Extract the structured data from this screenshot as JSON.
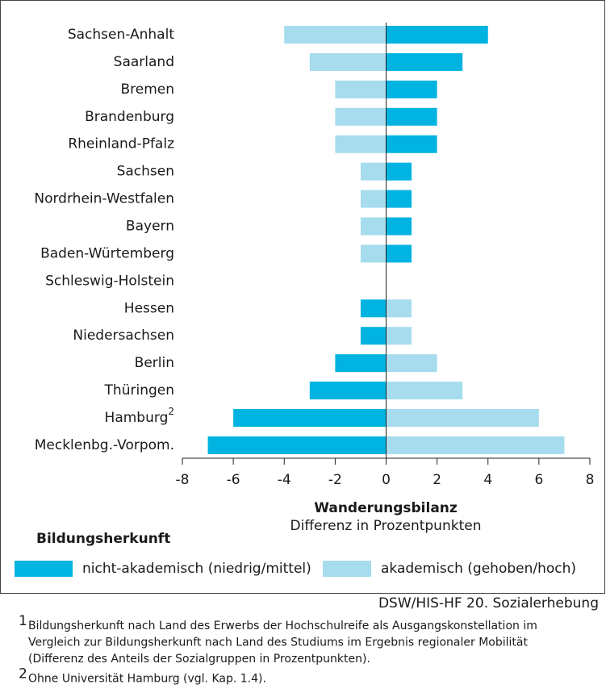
{
  "chart_data": {
    "type": "bar",
    "orientation": "horizontal",
    "categories": [
      "Sachsen-Anhalt",
      "Saarland",
      "Bremen",
      "Brandenburg",
      "Rheinland-Pfalz",
      "Sachsen",
      "Nordrhein-Westfalen",
      "Bayern",
      "Baden-Würtemberg",
      "Schleswig-Holstein",
      "Hessen",
      "Niedersachsen",
      "Berlin",
      "Thüringen",
      "Hamburg",
      "Mecklenbg.-Vorpom."
    ],
    "category_marks": [
      null,
      null,
      null,
      null,
      null,
      null,
      null,
      null,
      null,
      null,
      null,
      null,
      null,
      null,
      "2",
      null
    ],
    "series": [
      {
        "name": "nicht-akademisch (niedrig/mittel)",
        "color": "#00b3e0",
        "values": [
          4,
          3,
          2,
          2,
          2,
          1,
          1,
          1,
          1,
          0,
          -1,
          -1,
          -2,
          -3,
          -6,
          -7
        ]
      },
      {
        "name": "akademisch (gehoben/hoch)",
        "color": "#a6dcee",
        "values": [
          -4,
          -3,
          -2,
          -2,
          -2,
          -1,
          -1,
          -1,
          -1,
          0,
          1,
          1,
          2,
          3,
          6,
          7
        ]
      }
    ],
    "xlabel": "Wanderungsbilanz",
    "xlabel_sub": "Differenz in Prozentpunkten",
    "xlim": [
      -8,
      8
    ],
    "xticks": [
      -8,
      -6,
      -4,
      -2,
      0,
      2,
      4,
      6,
      8
    ],
    "legend_title": "Bildungsherkunft",
    "legend": "bottom",
    "source": "DSW/HIS-HF 20. Sozialerhebung",
    "footnotes": [
      {
        "mark": "1",
        "lines": [
          "Bildungsherkunft nach Land des Erwerbs der Hochschulreife als Ausgangskonstellation im",
          "Vergleich zur Bildungsherkunft nach Land des Studiums im Ergebnis regionaler Mobilität",
          "(Differenz des Anteils der Sozialgruppen in Prozentpunkten)."
        ]
      },
      {
        "mark": "2",
        "lines": [
          "Ohne Universität Hamburg (vgl. Kap. 1.4)."
        ]
      }
    ]
  }
}
